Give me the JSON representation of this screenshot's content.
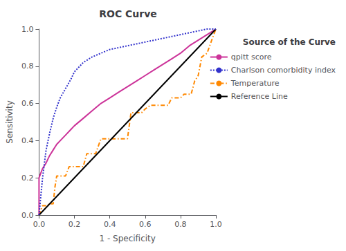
{
  "chart_data": {
    "type": "line",
    "title": "ROC Curve",
    "xlabel": "1 - Specificity",
    "ylabel": "Sensitivity",
    "legend_title": "Source of the Curve",
    "legend": "right",
    "grid": false,
    "xlim": [
      0.0,
      1.0
    ],
    "ylim": [
      0.0,
      1.0
    ],
    "xticks": [
      {
        "value": 0.0,
        "label": "0.0"
      },
      0.2,
      0.4,
      0.6,
      0.8,
      {
        "value": 1.0,
        "label": "1.0"
      }
    ],
    "yticks": [
      {
        "value": 0.0,
        "label": "0.0"
      },
      0.2,
      0.4,
      0.6,
      0.8,
      {
        "value": 1.0,
        "label": "1.0"
      }
    ],
    "series": [
      {
        "name": "qpitt score",
        "color": "#CC3399",
        "line_style": "solid",
        "x": [
          0.0,
          0.0,
          0.02,
          0.04,
          0.06,
          0.08,
          0.1,
          0.12,
          0.15,
          0.18,
          0.2,
          0.25,
          0.3,
          0.35,
          0.4,
          0.45,
          0.5,
          0.55,
          0.6,
          0.65,
          0.7,
          0.75,
          0.8,
          0.85,
          0.9,
          0.95,
          1.0
        ],
        "values": [
          0.0,
          0.2,
          0.25,
          0.28,
          0.32,
          0.35,
          0.38,
          0.4,
          0.43,
          0.46,
          0.48,
          0.52,
          0.56,
          0.6,
          0.63,
          0.66,
          0.69,
          0.72,
          0.75,
          0.78,
          0.81,
          0.84,
          0.87,
          0.91,
          0.94,
          0.97,
          1.0
        ]
      },
      {
        "name": "Charlson comorbidity index",
        "color": "#3333CC",
        "line_style": "dotted",
        "x": [
          0.0,
          0.02,
          0.04,
          0.06,
          0.08,
          0.1,
          0.12,
          0.15,
          0.18,
          0.2,
          0.25,
          0.3,
          0.35,
          0.4,
          0.45,
          0.5,
          0.55,
          0.6,
          0.65,
          0.7,
          0.75,
          0.8,
          0.85,
          0.9,
          0.95,
          1.0
        ],
        "values": [
          0.0,
          0.2,
          0.35,
          0.44,
          0.52,
          0.58,
          0.63,
          0.68,
          0.73,
          0.77,
          0.82,
          0.85,
          0.87,
          0.89,
          0.9,
          0.91,
          0.92,
          0.93,
          0.94,
          0.95,
          0.96,
          0.97,
          0.98,
          0.99,
          1.0,
          1.0
        ]
      },
      {
        "name": "Temperature",
        "color": "#FF8800",
        "line_style": "dashdot",
        "x": [
          0.0,
          0.02,
          0.04,
          0.06,
          0.07,
          0.08,
          0.09,
          0.1,
          0.12,
          0.15,
          0.17,
          0.2,
          0.22,
          0.25,
          0.27,
          0.3,
          0.32,
          0.35,
          0.38,
          0.4,
          0.42,
          0.44,
          0.46,
          0.48,
          0.5,
          0.52,
          0.55,
          0.58,
          0.6,
          0.63,
          0.65,
          0.68,
          0.7,
          0.73,
          0.75,
          0.78,
          0.8,
          0.82,
          0.84,
          0.86,
          0.88,
          0.9,
          0.92,
          0.95,
          0.98,
          1.0
        ],
        "values": [
          0.0,
          0.05,
          0.05,
          0.06,
          0.06,
          0.06,
          0.15,
          0.21,
          0.21,
          0.21,
          0.26,
          0.26,
          0.26,
          0.26,
          0.33,
          0.33,
          0.33,
          0.41,
          0.41,
          0.41,
          0.41,
          0.41,
          0.41,
          0.41,
          0.41,
          0.55,
          0.55,
          0.55,
          0.57,
          0.59,
          0.59,
          0.59,
          0.59,
          0.59,
          0.63,
          0.63,
          0.63,
          0.65,
          0.65,
          0.65,
          0.72,
          0.75,
          0.85,
          0.87,
          0.95,
          1.0
        ]
      },
      {
        "name": "Reference Line",
        "color": "#000000",
        "line_style": "solid",
        "x": [
          0,
          1
        ],
        "values": [
          0,
          1
        ]
      }
    ]
  }
}
